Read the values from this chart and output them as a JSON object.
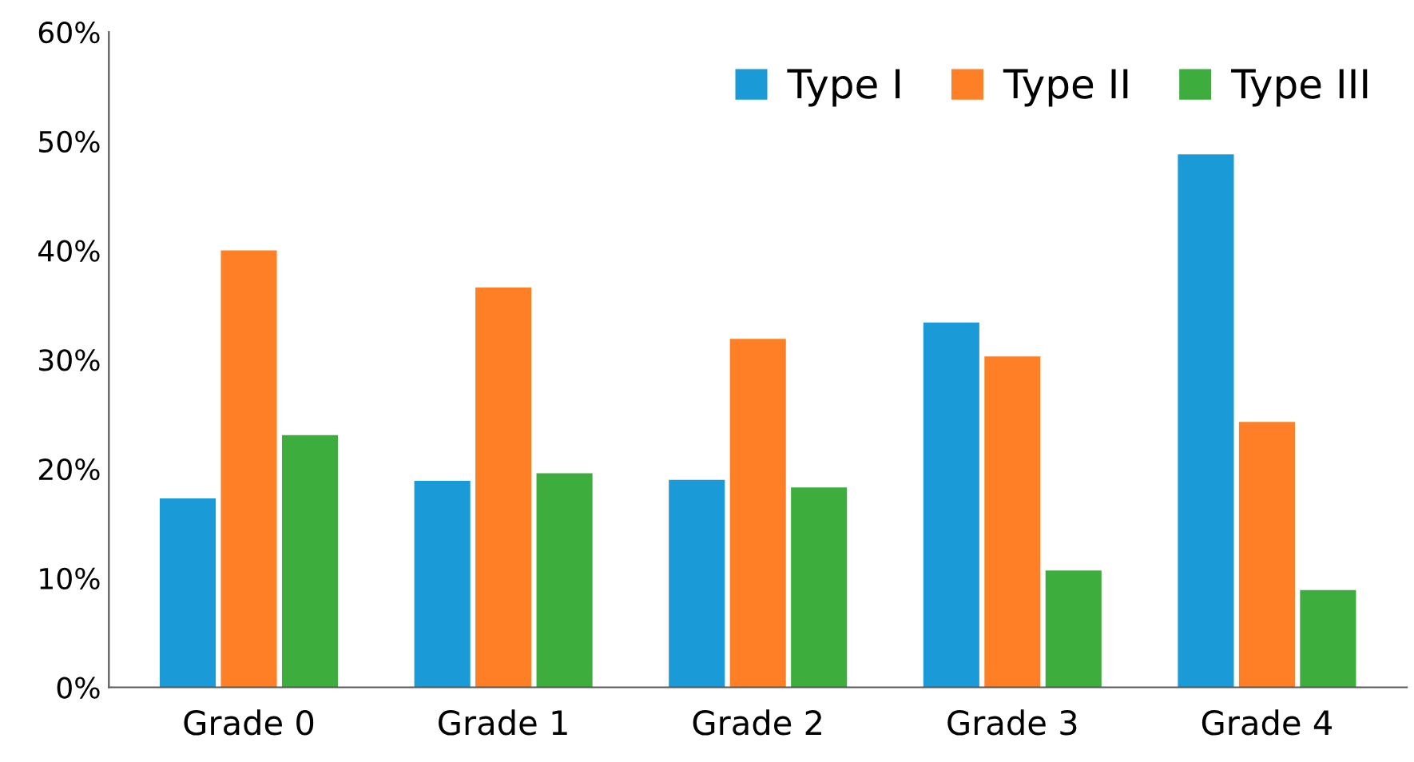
{
  "chart_data": {
    "type": "bar",
    "categories": [
      "Grade 0",
      "Grade 1",
      "Grade 2",
      "Grade 3",
      "Grade 4"
    ],
    "series": [
      {
        "name": "Type I",
        "color": "#1a9ad6",
        "values": [
          17.3,
          18.9,
          19.0,
          33.4,
          48.8
        ]
      },
      {
        "name": "Type II",
        "color": "#ff7f27",
        "values": [
          40.0,
          36.6,
          31.9,
          30.3,
          24.3
        ]
      },
      {
        "name": "Type III",
        "color": "#3dae3d",
        "values": [
          23.1,
          19.6,
          18.3,
          10.7,
          8.9
        ]
      }
    ],
    "ylim": [
      0,
      60
    ],
    "yticks": [
      {
        "value": 0,
        "label": "0%"
      },
      {
        "value": 10,
        "label": "10%"
      },
      {
        "value": 20,
        "label": "20%"
      },
      {
        "value": 30,
        "label": "30%"
      },
      {
        "value": 40,
        "label": "40%"
      },
      {
        "value": 50,
        "label": "50%"
      },
      {
        "value": 60,
        "label": "60%"
      }
    ],
    "grid": false,
    "legend": "top right"
  }
}
